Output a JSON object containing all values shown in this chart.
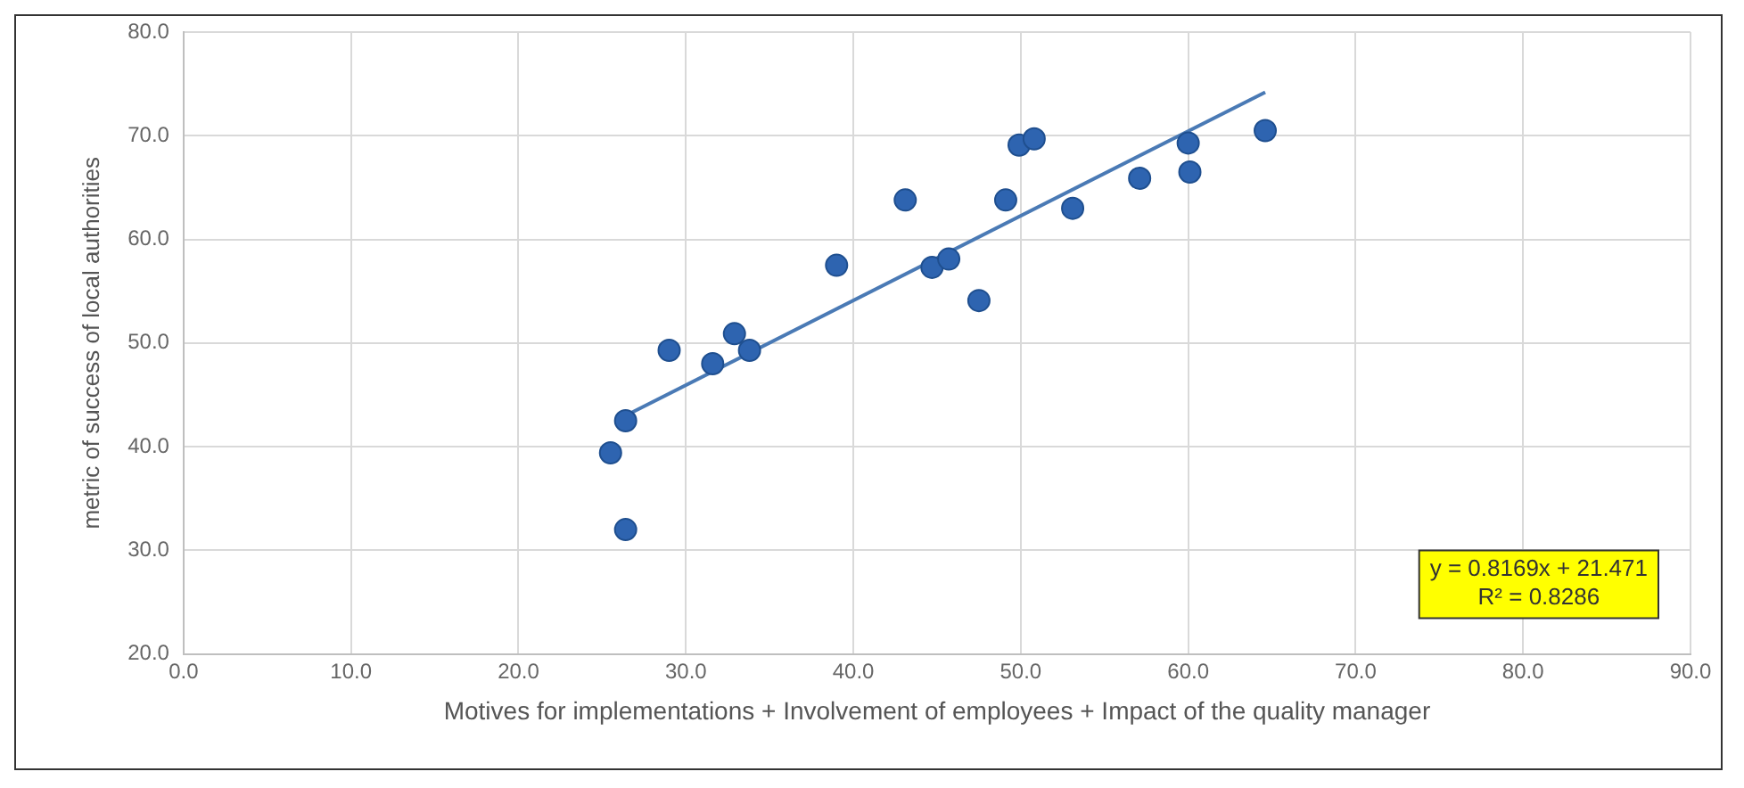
{
  "chart_data": {
    "type": "scatter",
    "xlabel": "Motives for implementations + Involvement of employees + Impact of the quality manager",
    "ylabel": "metric of success of local authorities",
    "xlim": [
      0,
      90
    ],
    "xticks": [
      {
        "value": 0,
        "label": "0.0"
      },
      {
        "value": 10,
        "label": "10.0"
      },
      {
        "value": 20,
        "label": "20.0"
      },
      {
        "value": 30,
        "label": "30.0"
      },
      {
        "value": 40,
        "label": "40.0"
      },
      {
        "value": 50,
        "label": "50.0"
      },
      {
        "value": 60,
        "label": "60.0"
      },
      {
        "value": 70,
        "label": "70.0"
      },
      {
        "value": 80,
        "label": "80.0"
      },
      {
        "value": 90,
        "label": "90.0"
      }
    ],
    "ylim": [
      20,
      80
    ],
    "yticks": [
      {
        "value": 20,
        "label": "20.0"
      },
      {
        "value": 30,
        "label": "30.0"
      },
      {
        "value": 40,
        "label": "40.0"
      },
      {
        "value": 50,
        "label": "50.0"
      },
      {
        "value": 60,
        "label": "60.0"
      },
      {
        "value": 70,
        "label": "70.0"
      },
      {
        "value": 80,
        "label": "80.0"
      }
    ],
    "grid": true,
    "legend": false,
    "series": [
      {
        "color": "#2e64b0",
        "marker": "circle",
        "x": [
          25.5,
          26.4,
          26.4,
          29.0,
          31.6,
          32.9,
          33.8,
          39.0,
          43.1,
          44.7,
          45.7,
          47.5,
          49.1,
          49.9,
          50.8,
          53.1,
          57.1,
          60.0,
          60.1,
          64.6
        ],
        "values": [
          39.4,
          32.0,
          42.5,
          49.3,
          48.0,
          50.9,
          49.3,
          57.5,
          63.8,
          57.3,
          58.1,
          54.1,
          63.8,
          69.1,
          69.7,
          63.0,
          65.9,
          69.3,
          66.5,
          70.5
        ]
      },
      {
        "type": "line",
        "color": "#4a7ab5",
        "x": [
          26.4,
          64.6
        ],
        "values": [
          43.0,
          74.2
        ]
      }
    ],
    "annotations": [
      "y = 0.8169x + 21.471",
      "R² = 0.8286"
    ]
  }
}
